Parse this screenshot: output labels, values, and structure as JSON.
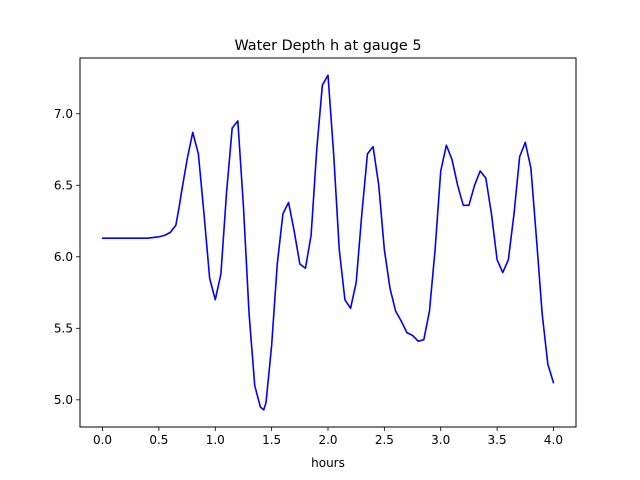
{
  "chart_data": {
    "type": "line",
    "title": "Water Depth h at gauge 5",
    "xlabel": "hours",
    "ylabel": "",
    "xlim": [
      -0.2,
      4.2
    ],
    "ylim": [
      4.81,
      7.39
    ],
    "grid": false,
    "legend": "none",
    "colors": {
      "line": "#0000ff",
      "axes": "#000000",
      "background": "#ffffff"
    },
    "x_ticks": [
      0.0,
      0.5,
      1.0,
      1.5,
      2.0,
      2.5,
      3.0,
      3.5,
      4.0
    ],
    "x_tick_labels": [
      "0.0",
      "0.5",
      "1.0",
      "1.5",
      "2.0",
      "2.5",
      "3.0",
      "3.5",
      "4.0"
    ],
    "y_ticks": [
      5.0,
      5.5,
      6.0,
      6.5,
      7.0
    ],
    "y_tick_labels": [
      "5.0",
      "5.5",
      "6.0",
      "6.5",
      "7.0"
    ],
    "series": [
      {
        "x": [
          0.0,
          0.1,
          0.2,
          0.3,
          0.4,
          0.5,
          0.55,
          0.6,
          0.65,
          0.68,
          0.7,
          0.75,
          0.8,
          0.85,
          0.9,
          0.95,
          1.0,
          1.05,
          1.1,
          1.15,
          1.2,
          1.25,
          1.3,
          1.35,
          1.4,
          1.43,
          1.45,
          1.5,
          1.55,
          1.6,
          1.65,
          1.7,
          1.75,
          1.8,
          1.85,
          1.9,
          1.95,
          2.0,
          2.05,
          2.1,
          2.15,
          2.2,
          2.25,
          2.3,
          2.35,
          2.4,
          2.45,
          2.5,
          2.55,
          2.6,
          2.65,
          2.7,
          2.75,
          2.8,
          2.85,
          2.9,
          2.95,
          3.0,
          3.05,
          3.1,
          3.15,
          3.2,
          3.25,
          3.3,
          3.35,
          3.4,
          3.45,
          3.5,
          3.55,
          3.6,
          3.65,
          3.7,
          3.75,
          3.8,
          3.85,
          3.9,
          3.95,
          4.0
        ],
        "y": [
          6.13,
          6.13,
          6.13,
          6.13,
          6.13,
          6.14,
          6.15,
          6.17,
          6.22,
          6.35,
          6.45,
          6.68,
          6.87,
          6.72,
          6.3,
          5.85,
          5.7,
          5.88,
          6.45,
          6.9,
          6.95,
          6.35,
          5.6,
          5.1,
          4.95,
          4.93,
          4.98,
          5.38,
          5.95,
          6.3,
          6.38,
          6.18,
          5.95,
          5.92,
          6.15,
          6.75,
          7.2,
          7.27,
          6.72,
          6.05,
          5.7,
          5.64,
          5.82,
          6.3,
          6.72,
          6.77,
          6.5,
          6.05,
          5.78,
          5.62,
          5.55,
          5.47,
          5.45,
          5.41,
          5.42,
          5.62,
          6.05,
          6.6,
          6.78,
          6.68,
          6.5,
          6.36,
          6.36,
          6.5,
          6.6,
          6.55,
          6.3,
          5.98,
          5.89,
          5.98,
          6.3,
          6.7,
          6.8,
          6.62,
          6.12,
          5.6,
          5.25,
          5.12
        ]
      }
    ]
  }
}
